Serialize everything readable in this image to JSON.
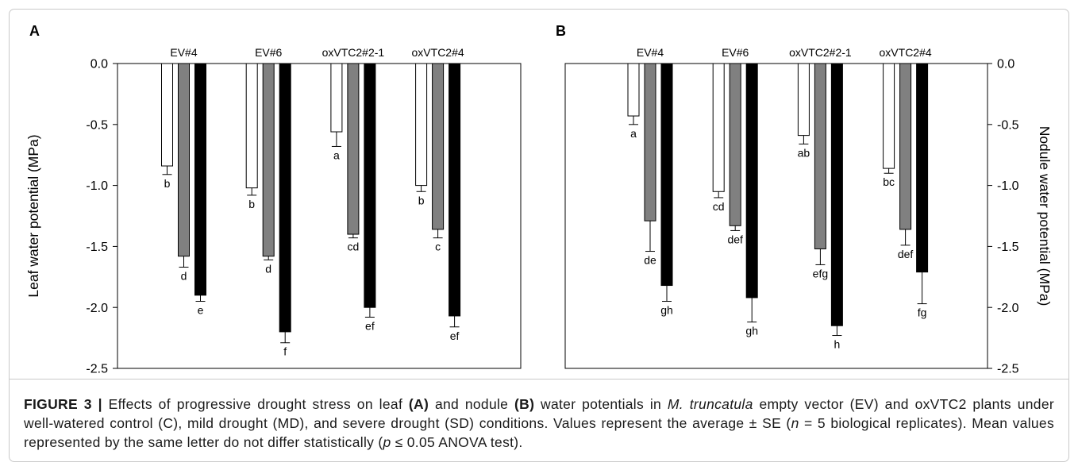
{
  "chart_data": [
    {
      "panel_label": "A",
      "type": "bar",
      "categories": [
        "EV#4",
        "EV#6",
        "oxVTC2#2-1",
        "oxVTC2#4"
      ],
      "xlabel": "",
      "ylabel": "Leaf water potential (MPa)",
      "ylim": [
        -2.5,
        0.0
      ],
      "yticks": [
        "0.0",
        "-0.5",
        "-1.0",
        "-1.5",
        "-2.0",
        "-2.5"
      ],
      "grid": false,
      "series": [
        {
          "color": "#ffffff",
          "values": [
            -0.84,
            -1.02,
            -0.56,
            -1.0
          ],
          "errors": [
            0.07,
            0.06,
            0.12,
            0.05
          ],
          "labels": [
            "b",
            "b",
            "a",
            "b"
          ]
        },
        {
          "color": "#808080",
          "values": [
            -1.58,
            -1.58,
            -1.4,
            -1.36
          ],
          "errors": [
            0.09,
            0.03,
            0.03,
            0.07
          ],
          "labels": [
            "d",
            "d",
            "cd",
            "c"
          ]
        },
        {
          "color": "#000000",
          "values": [
            -1.9,
            -2.2,
            -2.0,
            -2.07
          ],
          "errors": [
            0.05,
            0.09,
            0.08,
            0.09
          ],
          "labels": [
            "e",
            "f",
            "ef",
            "ef"
          ]
        }
      ]
    },
    {
      "panel_label": "B",
      "type": "bar",
      "categories": [
        "EV#4",
        "EV#6",
        "oxVTC2#2-1",
        "oxVTC2#4"
      ],
      "xlabel": "",
      "ylabel": "Nodule water potential (MPa)",
      "ylim": [
        -2.5,
        0.0
      ],
      "yticks": [
        "0.0",
        "-0.5",
        "-1.0",
        "-1.5",
        "-2.0",
        "-2.5"
      ],
      "grid": false,
      "series": [
        {
          "color": "#ffffff",
          "values": [
            -0.43,
            -1.05,
            -0.59,
            -0.86
          ],
          "errors": [
            0.07,
            0.05,
            0.07,
            0.04
          ],
          "labels": [
            "a",
            "cd",
            "ab",
            "bc"
          ]
        },
        {
          "color": "#808080",
          "values": [
            -1.29,
            -1.33,
            -1.52,
            -1.36
          ],
          "errors": [
            0.25,
            0.04,
            0.13,
            0.13
          ],
          "labels": [
            "de",
            "def",
            "efg",
            "def"
          ]
        },
        {
          "color": "#000000",
          "values": [
            -1.82,
            -1.92,
            -2.15,
            -1.71
          ],
          "errors": [
            0.13,
            0.2,
            0.08,
            0.26
          ],
          "labels": [
            "gh",
            "gh",
            "h",
            "fg"
          ]
        }
      ]
    }
  ],
  "caption": {
    "runs": [
      "FIGURE 3 | ",
      "Effects of progressive drought stress on leaf ",
      "(A)",
      " and nodule ",
      "(B)",
      " water potentials in ",
      "M. truncatula",
      " empty vector (EV) and oxVTC2 plants under",
      "well-watered control (C), mild drought (MD), and severe drought (SD) conditions. Values represent the average ± SE (",
      "n",
      " = 5 biological replicates). Mean values",
      "represented by the same letter do not differ statistically (",
      "p",
      " ≤ 0.05 ANOVA test)."
    ]
  }
}
